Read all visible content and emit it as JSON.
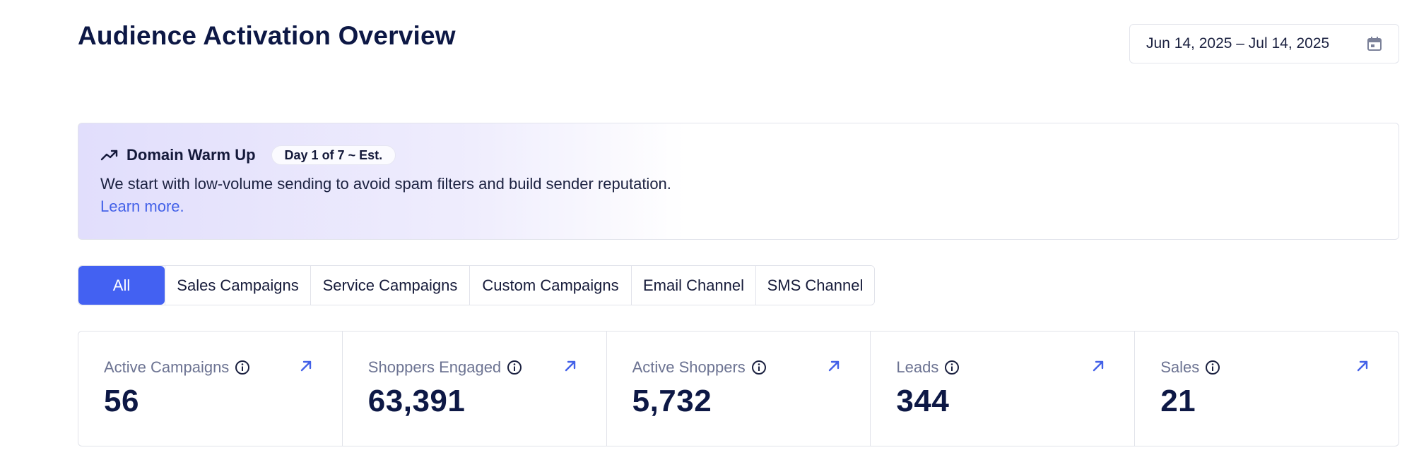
{
  "page": {
    "title": "Audience Activation Overview"
  },
  "date_range": {
    "label": "Jun 14, 2025 – Jul 14, 2025",
    "icon": "calendar-icon"
  },
  "banner": {
    "icon": "trending-up-icon",
    "title": "Domain Warm Up",
    "badge": "Day 1 of 7 ~ Est.",
    "description": "We start with low-volume sending to avoid spam filters and build sender reputation.",
    "link": "Learn more."
  },
  "tabs": [
    {
      "label": "All",
      "active": true
    },
    {
      "label": "Sales Campaigns",
      "active": false
    },
    {
      "label": "Service Campaigns",
      "active": false
    },
    {
      "label": "Custom Campaigns",
      "active": false
    },
    {
      "label": "Email Channel",
      "active": false
    },
    {
      "label": "SMS Channel",
      "active": false
    }
  ],
  "stats": [
    {
      "label": "Active Campaigns",
      "value": "56"
    },
    {
      "label": "Shoppers Engaged",
      "value": "63,391"
    },
    {
      "label": "Active Shoppers",
      "value": "5,732"
    },
    {
      "label": "Leads",
      "value": "344"
    },
    {
      "label": "Sales",
      "value": "21"
    }
  ],
  "colors": {
    "accent": "#4361f2",
    "link": "#4361e8",
    "heading": "#0d1845",
    "muted": "#6c7392"
  }
}
